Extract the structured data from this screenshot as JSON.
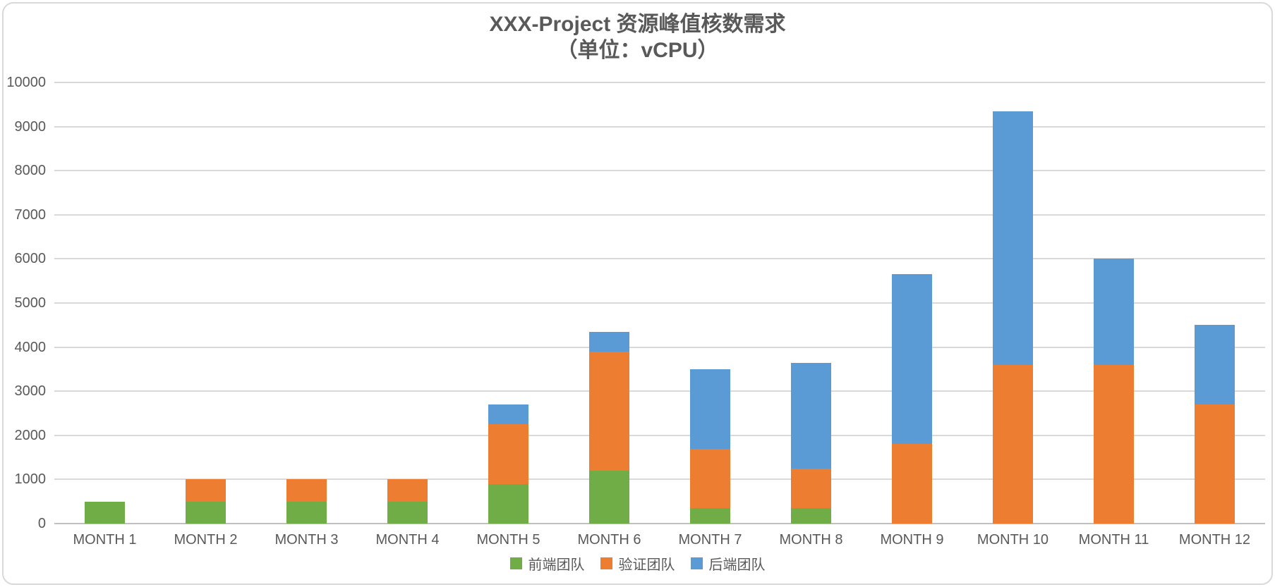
{
  "colors": {
    "series_green": "#70AD47",
    "series_orange": "#ED7D31",
    "series_blue": "#5B9BD5",
    "text_gray": "#595959",
    "gridline_gray": "#D9D9D9",
    "axis_line_gray": "#BFBFBF",
    "frame_border": "#D9D9D9",
    "background": "#FFFFFF"
  },
  "chart_data": {
    "type": "bar",
    "stacked": true,
    "title": "XXX-Project 资源峰值核数需求",
    "subtitle": "（单位：vCPU）",
    "categories": [
      "MONTH 1",
      "MONTH 2",
      "MONTH 3",
      "MONTH 4",
      "MONTH 5",
      "MONTH 6",
      "MONTH 7",
      "MONTH 8",
      "MONTH 9",
      "MONTH 10",
      "MONTH 11",
      "MONTH 12"
    ],
    "series": [
      {
        "name": "前端团队",
        "color": "#70AD47",
        "values": [
          500,
          500,
          500,
          500,
          900,
          1200,
          350,
          350,
          0,
          0,
          0,
          0
        ]
      },
      {
        "name": "验证团队",
        "color": "#ED7D31",
        "values": [
          0,
          500,
          500,
          500,
          1350,
          2700,
          1350,
          900,
          1800,
          3600,
          3600,
          2700
        ]
      },
      {
        "name": "后端团队",
        "color": "#5B9BD5",
        "values": [
          0,
          0,
          0,
          0,
          450,
          450,
          1800,
          2400,
          3850,
          5750,
          2400,
          1800
        ]
      }
    ],
    "stack_totals": [
      500,
      1000,
      1000,
      1000,
      2700,
      4350,
      3500,
      3650,
      5650,
      9350,
      6000,
      4500
    ],
    "xlabel": "",
    "ylabel": "",
    "ylim": [
      0,
      10000
    ],
    "yticks": [
      0,
      1000,
      2000,
      3000,
      4000,
      5000,
      6000,
      7000,
      8000,
      9000,
      10000
    ],
    "grid": true,
    "legend_position": "bottom"
  }
}
